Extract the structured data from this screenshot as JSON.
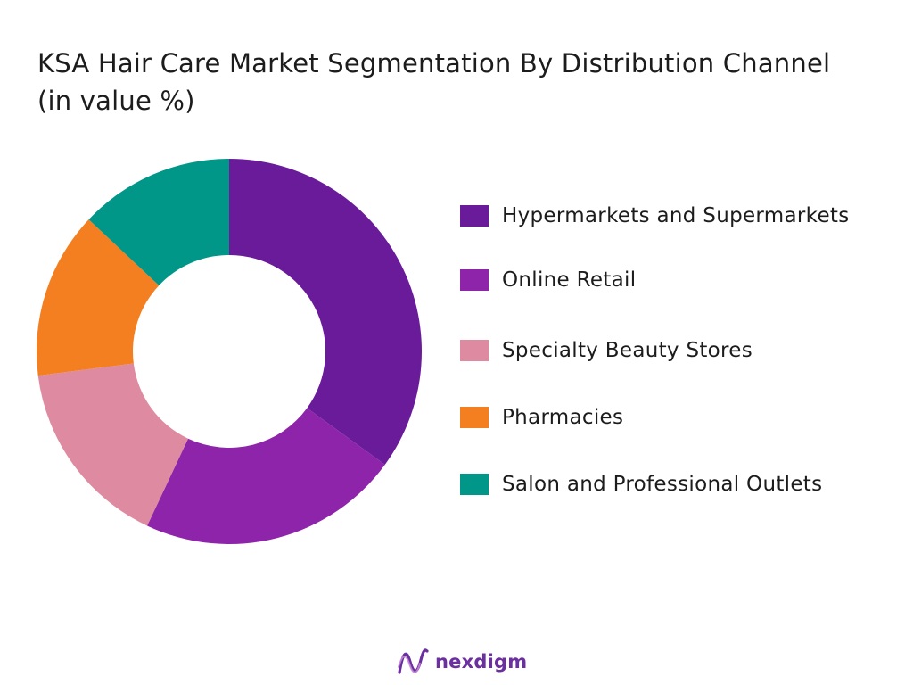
{
  "chart_data": {
    "type": "pie",
    "variant": "donut",
    "title": "KSA Hair Care Market Segmentation By Distribution Channel (in value %)",
    "categories": [
      "Hypermarkets and Supermarkets",
      "Online Retail",
      "Specialty Beauty Stores",
      "Pharmacies",
      "Salon and Professional Outlets"
    ],
    "values": [
      35,
      22,
      16,
      14,
      13
    ],
    "colors": [
      "#6a1b9a",
      "#8e24aa",
      "#de8aa0",
      "#f47f20",
      "#009688"
    ],
    "legend_position": "right",
    "start_angle": "top",
    "direction": "clockwise"
  },
  "brand": {
    "name": "nexdigm",
    "logo_icon": "nexdigm-logo-icon"
  }
}
